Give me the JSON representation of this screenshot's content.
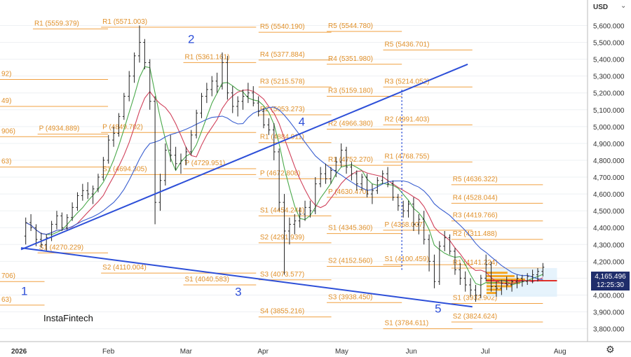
{
  "chart_data": {
    "type": "candlestick",
    "currency_label": "USD",
    "watermark": "InstaFintech",
    "current_price": "4,165.496",
    "countdown": "12:25:30",
    "year_label": "2026",
    "x_ticks": [
      "2026",
      "Feb",
      "Mar",
      "Apr",
      "May",
      "Jun",
      "Jul",
      "Aug"
    ],
    "y_ticks": [
      3800,
      3900,
      4000,
      4100,
      4200,
      4300,
      4400,
      4500,
      4600,
      4700,
      4800,
      4900,
      5000,
      5100,
      5200,
      5300,
      5400,
      5500,
      5600
    ],
    "y_tick_labels": [
      "3,800.000",
      "3,900.000",
      "4,000.000",
      "4,100.000",
      "4,200.000",
      "4,300.000",
      "4,400.000",
      "4,500.000",
      "4,600.000",
      "4,700.000",
      "4,800.000",
      "4,900.000",
      "5,000.000",
      "5,100.000",
      "5,200.000",
      "5,300.000",
      "5,400.000",
      "5,500.000",
      "5,600.000"
    ],
    "ylim": [
      3765,
      5710
    ],
    "xlim_days": [
      0,
      238
    ],
    "wave_labels": [
      {
        "text": "1",
        "day": 0,
        "price": 4000
      },
      {
        "text": "2",
        "day": 71,
        "price": 5495
      },
      {
        "text": "3",
        "day": 91,
        "price": 3995
      },
      {
        "text": "4",
        "day": 118,
        "price": 5005
      },
      {
        "text": "5",
        "day": 176,
        "price": 3895
      }
    ],
    "pivot_levels": [
      {
        "text": "92)",
        "day_start": 0,
        "day_end": 37,
        "price": 5280
      },
      {
        "text": "49)",
        "day_start": 0,
        "day_end": 37,
        "price": 5120
      },
      {
        "text": "906)",
        "day_start": 0,
        "day_end": 37,
        "price": 4940
      },
      {
        "text": "63)",
        "day_start": 0,
        "day_end": 37,
        "price": 4760
      },
      {
        "text": "R1 (5559.379)",
        "day_start": 14,
        "day_end": 37,
        "price": 5580
      },
      {
        "text": "P (4934.889)",
        "day_start": 16,
        "day_end": 37,
        "price": 4955
      },
      {
        "text": "S1 (4270.229)",
        "day_start": 16,
        "day_end": 37,
        "price": 4250
      },
      {
        "text": "706)",
        "day_start": 0,
        "day_end": 10,
        "price": 4080
      },
      {
        "text": "63)",
        "day_start": 0,
        "day_end": 10,
        "price": 3940
      },
      {
        "text": "R1 (5571.003)",
        "day_start": 43,
        "day_end": 100,
        "price": 5590
      },
      {
        "text": "P (4849.702)",
        "day_start": 43,
        "day_end": 100,
        "price": 4965
      },
      {
        "text": "S1 (4694.305)",
        "day_start": 43,
        "day_end": 100,
        "price": 4715
      },
      {
        "text": "S2 (4110.004)",
        "day_start": 43,
        "day_end": 100,
        "price": 4130
      },
      {
        "text": "R1 (5361.161)",
        "day_start": 78,
        "day_end": 100,
        "price": 5380
      },
      {
        "text": "P (4729.951)",
        "day_start": 78,
        "day_end": 100,
        "price": 4750
      },
      {
        "text": "S1 (4040.583)",
        "day_start": 78,
        "day_end": 100,
        "price": 4060
      },
      {
        "text": "R5 (5540.190)",
        "day_start": 110,
        "day_end": 132,
        "price": 5560
      },
      {
        "text": "R4 (5377.884)",
        "day_start": 110,
        "day_end": 132,
        "price": 5395
      },
      {
        "text": "R3 (5215.578)",
        "day_start": 110,
        "day_end": 132,
        "price": 5235
      },
      {
        "text": "R2 (5053.273)",
        "day_start": 110,
        "day_end": 132,
        "price": 5070
      },
      {
        "text": "R1 (4884.911)",
        "day_start": 110,
        "day_end": 132,
        "price": 4905
      },
      {
        "text": "P (4672.808)",
        "day_start": 110,
        "day_end": 132,
        "price": 4690
      },
      {
        "text": "S1 (4454.244)",
        "day_start": 110,
        "day_end": 132,
        "price": 4470
      },
      {
        "text": "S2 (4291.939)",
        "day_start": 110,
        "day_end": 132,
        "price": 4310
      },
      {
        "text": "S3 (4073.577)",
        "day_start": 110,
        "day_end": 132,
        "price": 4090
      },
      {
        "text": "S4 (3855.216)",
        "day_start": 110,
        "day_end": 132,
        "price": 3870
      },
      {
        "text": "R5 (5544.780)",
        "day_start": 139,
        "day_end": 162,
        "price": 5565
      },
      {
        "text": "R4 (5351.980)",
        "day_start": 139,
        "day_end": 162,
        "price": 5370
      },
      {
        "text": "R3 (5159.180)",
        "day_start": 139,
        "day_end": 162,
        "price": 5180
      },
      {
        "text": "R2 (4966.380)",
        "day_start": 139,
        "day_end": 162,
        "price": 4985
      },
      {
        "text": "R1 (4752.270)",
        "day_start": 139,
        "day_end": 162,
        "price": 4770
      },
      {
        "text": "P (4630.470)",
        "day_start": 139,
        "day_end": 162,
        "price": 4580
      },
      {
        "text": "S1 (4345.360)",
        "day_start": 139,
        "day_end": 162,
        "price": 4365
      },
      {
        "text": "S2 (4152.560)",
        "day_start": 139,
        "day_end": 162,
        "price": 4170
      },
      {
        "text": "S3 (3938.450)",
        "day_start": 139,
        "day_end": 162,
        "price": 3955
      },
      {
        "text": "R5 (5436.701)",
        "day_start": 163,
        "day_end": 192,
        "price": 5455
      },
      {
        "text": "R3 (5214.052)",
        "day_start": 163,
        "day_end": 192,
        "price": 5235
      },
      {
        "text": "R2 (4991.403)",
        "day_start": 163,
        "day_end": 192,
        "price": 5010
      },
      {
        "text": "R1 (4768.755)",
        "day_start": 163,
        "day_end": 192,
        "price": 4790
      },
      {
        "text": "P (4368.007)",
        "day_start": 163,
        "day_end": 192,
        "price": 4385
      },
      {
        "text": "S1 (4100.459)",
        "day_start": 163,
        "day_end": 192,
        "price": 4180
      },
      {
        "text": "S1 (3784.611)",
        "day_start": 163,
        "day_end": 192,
        "price": 3800
      },
      {
        "text": "R5 (4636.322)",
        "day_start": 192,
        "day_end": 222,
        "price": 4655
      },
      {
        "text": "R4 (4528.044)",
        "day_start": 192,
        "day_end": 222,
        "price": 4545
      },
      {
        "text": "R3 (4419.766)",
        "day_start": 192,
        "day_end": 222,
        "price": 4440
      },
      {
        "text": "R2 (4311.488)",
        "day_start": 192,
        "day_end": 222,
        "price": 4330
      },
      {
        "text": "R1 (4141.224)",
        "day_start": 192,
        "day_end": 222,
        "price": 4160
      },
      {
        "text": "S1 (3932.902)",
        "day_start": 192,
        "day_end": 222,
        "price": 3950
      },
      {
        "text": "S2 (3824.624)",
        "day_start": 192,
        "day_end": 222,
        "price": 3840
      }
    ],
    "trendlines": [
      {
        "from": [
          0,
          4270
        ],
        "to": [
          190,
          5370
        ]
      },
      {
        "from": [
          0,
          4280
        ],
        "to": [
          192,
          3930
        ]
      }
    ],
    "vertical_dotted": {
      "day": 162,
      "price_from": 4150,
      "price_to": 5230
    },
    "series": [
      {
        "name": "",
        "kind": "ohlc",
        "values": [
          [
            4350,
            4460,
            4300,
            4430
          ],
          [
            4430,
            4480,
            4380,
            4400
          ],
          [
            4400,
            4420,
            4290,
            4330
          ],
          [
            4330,
            4370,
            4280,
            4300
          ],
          [
            4300,
            4360,
            4260,
            4340
          ],
          [
            4340,
            4440,
            4320,
            4420
          ],
          [
            4420,
            4500,
            4390,
            4470
          ],
          [
            4470,
            4490,
            4380,
            4400
          ],
          [
            4400,
            4480,
            4380,
            4460
          ],
          [
            4460,
            4550,
            4440,
            4520
          ],
          [
            4520,
            4610,
            4500,
            4590
          ],
          [
            4590,
            4660,
            4560,
            4620
          ],
          [
            4620,
            4670,
            4570,
            4600
          ],
          [
            4600,
            4650,
            4540,
            4630
          ],
          [
            4630,
            4720,
            4610,
            4700
          ],
          [
            4700,
            4820,
            4680,
            4800
          ],
          [
            4800,
            4950,
            4780,
            4920
          ],
          [
            4920,
            5000,
            4880,
            4960
          ],
          [
            4960,
            5080,
            4940,
            5060
          ],
          [
            5060,
            5200,
            5040,
            5180
          ],
          [
            5180,
            5330,
            5150,
            5300
          ],
          [
            5300,
            5440,
            5260,
            5420
          ],
          [
            5420,
            5600,
            5380,
            5500
          ],
          [
            5500,
            5520,
            5340,
            5380
          ],
          [
            5380,
            5400,
            5100,
            5150
          ],
          [
            5150,
            5180,
            4420,
            4550
          ],
          [
            4550,
            4720,
            4500,
            4680
          ],
          [
            4680,
            4900,
            4650,
            4860
          ],
          [
            4860,
            4950,
            4790,
            4830
          ],
          [
            4830,
            4880,
            4740,
            4780
          ],
          [
            4780,
            4840,
            4720,
            4800
          ],
          [
            4800,
            4880,
            4770,
            4850
          ],
          [
            4850,
            4980,
            4830,
            4950
          ],
          [
            4950,
            5100,
            4930,
            5080
          ],
          [
            5080,
            5200,
            5050,
            5180
          ],
          [
            5180,
            5260,
            5140,
            5220
          ],
          [
            5220,
            5300,
            5180,
            5270
          ],
          [
            5270,
            5320,
            5200,
            5240
          ],
          [
            5240,
            5440,
            5220,
            5380
          ],
          [
            5380,
            5420,
            5160,
            5200
          ],
          [
            5200,
            5240,
            5080,
            5120
          ],
          [
            5120,
            5180,
            5060,
            5150
          ],
          [
            5150,
            5220,
            5100,
            5180
          ],
          [
            5180,
            5260,
            5140,
            5200
          ],
          [
            5200,
            5240,
            5120,
            5140
          ],
          [
            5140,
            5180,
            5060,
            5090
          ],
          [
            5090,
            5110,
            4990,
            5010
          ],
          [
            5010,
            5050,
            4950,
            4980
          ],
          [
            4980,
            5020,
            4800,
            4850
          ],
          [
            4850,
            4870,
            4500,
            4550
          ],
          [
            4550,
            4600,
            4120,
            4380
          ],
          [
            4380,
            4460,
            4300,
            4420
          ],
          [
            4420,
            4480,
            4360,
            4440
          ],
          [
            4440,
            4520,
            4400,
            4480
          ],
          [
            4480,
            4560,
            4440,
            4520
          ],
          [
            4520,
            4560,
            4460,
            4500
          ],
          [
            4500,
            4700,
            4480,
            4660
          ],
          [
            4660,
            4760,
            4640,
            4720
          ],
          [
            4720,
            4780,
            4660,
            4690
          ],
          [
            4690,
            4760,
            4660,
            4740
          ],
          [
            4740,
            4820,
            4700,
            4790
          ],
          [
            4790,
            4900,
            4760,
            4860
          ],
          [
            4860,
            4880,
            4720,
            4760
          ],
          [
            4760,
            4790,
            4680,
            4720
          ],
          [
            4720,
            4740,
            4620,
            4660
          ],
          [
            4660,
            4720,
            4620,
            4700
          ],
          [
            4700,
            4720,
            4580,
            4600
          ],
          [
            4600,
            4660,
            4540,
            4620
          ],
          [
            4620,
            4700,
            4600,
            4680
          ],
          [
            4680,
            4740,
            4660,
            4720
          ],
          [
            4720,
            4760,
            4640,
            4660
          ],
          [
            4660,
            4680,
            4560,
            4580
          ],
          [
            4580,
            4600,
            4500,
            4530
          ],
          [
            4530,
            4560,
            4460,
            4500
          ],
          [
            4500,
            4560,
            4460,
            4540
          ],
          [
            4540,
            4580,
            4380,
            4420
          ],
          [
            4420,
            4480,
            4360,
            4450
          ],
          [
            4450,
            4500,
            4300,
            4330
          ],
          [
            4330,
            4360,
            4140,
            4200
          ],
          [
            4200,
            4240,
            4040,
            4080
          ],
          [
            4080,
            4320,
            4060,
            4290
          ],
          [
            4290,
            4380,
            4260,
            4340
          ],
          [
            4340,
            4360,
            4240,
            4260
          ],
          [
            4260,
            4280,
            4120,
            4150
          ],
          [
            4150,
            4190,
            4060,
            4100
          ],
          [
            4100,
            4140,
            4020,
            4060
          ],
          [
            4060,
            4100,
            3990,
            4030
          ],
          [
            4030,
            4060,
            3960,
            4000
          ],
          [
            4000,
            4120,
            3980,
            4100
          ],
          [
            4100,
            4240,
            4080,
            4180
          ],
          [
            4180,
            4200,
            4020,
            4050
          ],
          [
            4050,
            4080,
            3990,
            4040
          ],
          [
            4040,
            4090,
            4000,
            4070
          ],
          [
            4070,
            4110,
            4030,
            4060
          ],
          [
            4060,
            4090,
            4020,
            4080
          ],
          [
            4080,
            4120,
            4040,
            4100
          ],
          [
            4100,
            4120,
            4050,
            4080
          ],
          [
            4080,
            4130,
            4060,
            4110
          ],
          [
            4110,
            4150,
            4070,
            4120
          ],
          [
            4120,
            4160,
            4080,
            4140
          ],
          [
            4140,
            4190,
            4110,
            4165
          ]
        ]
      }
    ]
  }
}
